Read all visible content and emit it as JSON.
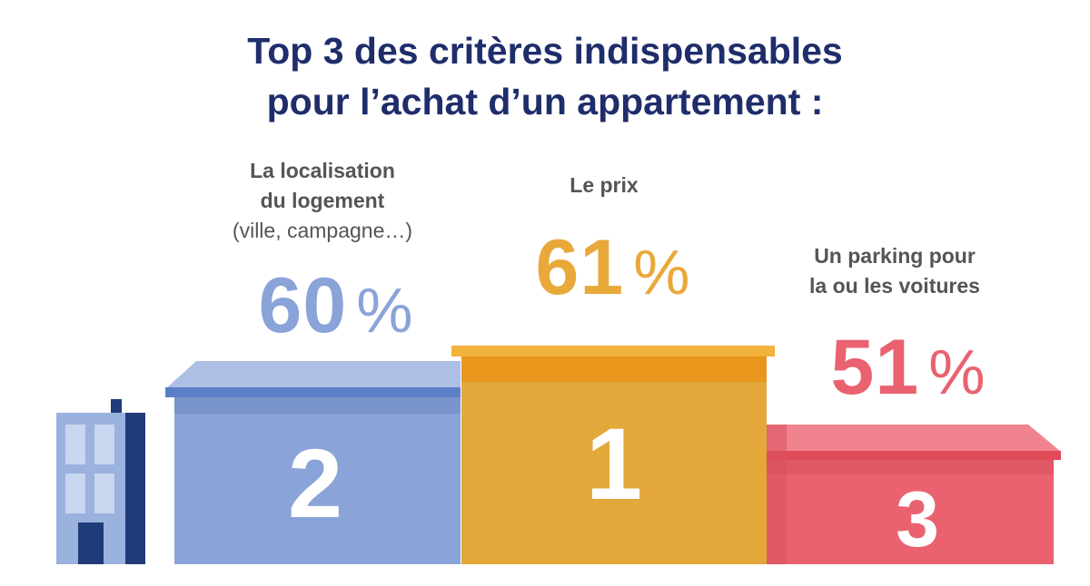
{
  "title_line1": "Top 3 des critères indispensables",
  "title_line2": "pour l’achat d’un appartement :",
  "colors": {
    "title": "#1f2d6b",
    "blue": "#8aa3d8",
    "orange": "#e3a73a",
    "red": "#ea6270",
    "building": "#9bb2df",
    "building_dark": "#1f3b7a"
  },
  "icons": [
    "building-icon"
  ],
  "chart_data": {
    "type": "bar",
    "title": "Top 3 des critères indispensables pour l’achat d’un appartement :",
    "unit": "%",
    "series": [
      {
        "rank": "2",
        "label_line1": "La localisation",
        "label_line2": "du logement",
        "label_line3": "(ville, campagne…)",
        "value": 60,
        "value_text": "60",
        "color": "#8aa3d8"
      },
      {
        "rank": "1",
        "label_line1": "Le prix",
        "value": 61,
        "value_text": "61",
        "color": "#e3a73a"
      },
      {
        "rank": "3",
        "label_line1": "Un parking pour",
        "label_line2": "la ou les voitures",
        "value": 51,
        "value_text": "51",
        "color": "#ea6270"
      }
    ]
  }
}
